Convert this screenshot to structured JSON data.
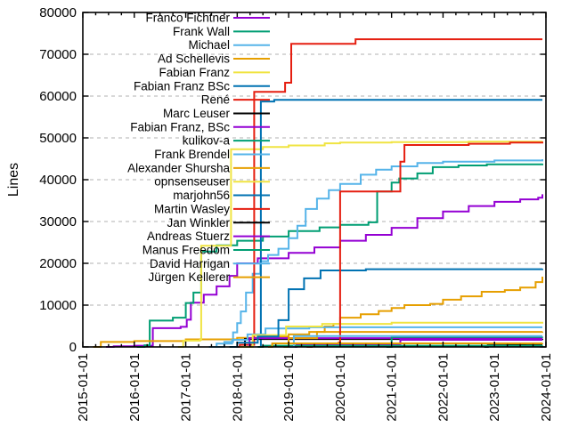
{
  "chart_data": {
    "type": "line",
    "title": "",
    "ylabel": "Lines",
    "x_axis": {
      "start_year": 2015,
      "end_year": 2024,
      "tick_labels": [
        "2015-01-01",
        "2016-01-01",
        "2017-01-01",
        "2018-01-01",
        "2019-01-01",
        "2020-01-01",
        "2021-01-01",
        "2022-01-01",
        "2023-01-01",
        "2024-01-01"
      ],
      "minor_ticks_per_year": 4,
      "label_rotation_deg": -90
    },
    "y_axis": {
      "min": 0,
      "max": 80000,
      "tick_step": 10000,
      "tick_labels": [
        "0",
        "10000",
        "20000",
        "30000",
        "40000",
        "50000",
        "60000",
        "70000",
        "80000"
      ]
    },
    "grid": {
      "horizontal_dashed": true,
      "color": "#b0b0b0"
    },
    "legend": {
      "position": "top-left-inside",
      "text_color": "#111111",
      "sample_line_length": 41
    },
    "axis_color": "#000000",
    "background_color": "#ffffff",
    "series": [
      {
        "name": "Franco Fichtner",
        "color": "#9400d3",
        "points": [
          [
            2015.45,
            0
          ],
          [
            2015.6,
            150
          ],
          [
            2016.0,
            300
          ],
          [
            2016.36,
            4500
          ],
          [
            2016.9,
            4800
          ],
          [
            2017.02,
            6500
          ],
          [
            2017.1,
            10600
          ],
          [
            2017.35,
            12500
          ],
          [
            2017.6,
            14500
          ],
          [
            2017.85,
            17000
          ],
          [
            2018.0,
            20000
          ],
          [
            2018.4,
            21200
          ],
          [
            2019.0,
            22500
          ],
          [
            2019.5,
            23800
          ],
          [
            2020.0,
            25400
          ],
          [
            2020.5,
            26800
          ],
          [
            2021.0,
            28500
          ],
          [
            2021.5,
            30800
          ],
          [
            2022.0,
            32400
          ],
          [
            2022.5,
            33700
          ],
          [
            2023.0,
            34700
          ],
          [
            2023.5,
            35300
          ],
          [
            2023.85,
            35700
          ],
          [
            2023.93,
            36500
          ]
        ]
      },
      {
        "name": "Frank Wall",
        "color": "#009e73",
        "points": [
          [
            2016.05,
            0
          ],
          [
            2016.2,
            400
          ],
          [
            2016.3,
            6300
          ],
          [
            2016.75,
            7000
          ],
          [
            2017.0,
            10500
          ],
          [
            2017.15,
            13000
          ],
          [
            2017.3,
            22800
          ],
          [
            2017.6,
            24300
          ],
          [
            2018.0,
            25400
          ],
          [
            2018.5,
            26400
          ],
          [
            2019.0,
            27700
          ],
          [
            2019.6,
            28600
          ],
          [
            2020.0,
            29200
          ],
          [
            2020.55,
            29800
          ],
          [
            2020.72,
            37200
          ],
          [
            2021.0,
            39300
          ],
          [
            2021.15,
            40300
          ],
          [
            2021.5,
            41500
          ],
          [
            2021.8,
            43000
          ],
          [
            2022.3,
            43400
          ],
          [
            2022.85,
            43650
          ],
          [
            2023.93,
            43850
          ]
        ]
      },
      {
        "name": "Michael",
        "color": "#56b4e9",
        "points": [
          [
            2017.55,
            0
          ],
          [
            2017.75,
            1200
          ],
          [
            2017.92,
            3500
          ],
          [
            2018.0,
            5700
          ],
          [
            2018.07,
            8500
          ],
          [
            2018.17,
            13000
          ],
          [
            2018.3,
            17500
          ],
          [
            2018.45,
            20500
          ],
          [
            2018.6,
            22000
          ],
          [
            2018.8,
            23500
          ],
          [
            2019.0,
            26000
          ],
          [
            2019.17,
            29000
          ],
          [
            2019.33,
            33000
          ],
          [
            2019.55,
            35500
          ],
          [
            2019.78,
            37500
          ],
          [
            2020.0,
            39000
          ],
          [
            2020.4,
            41200
          ],
          [
            2020.7,
            42400
          ],
          [
            2021.0,
            43200
          ],
          [
            2021.5,
            44000
          ],
          [
            2022.0,
            44300
          ],
          [
            2023.0,
            44600
          ],
          [
            2023.93,
            44900
          ]
        ]
      },
      {
        "name": "Ad Schellevis",
        "color": "#e69f00",
        "points": [
          [
            2015.2,
            0
          ],
          [
            2015.35,
            1200
          ],
          [
            2016.0,
            1400
          ],
          [
            2017.0,
            1800
          ],
          [
            2018.0,
            2200
          ],
          [
            2018.5,
            2500
          ],
          [
            2019.0,
            3000
          ],
          [
            2019.4,
            3600
          ],
          [
            2019.7,
            4900
          ],
          [
            2019.87,
            5500
          ],
          [
            2020.0,
            7000
          ],
          [
            2020.4,
            7800
          ],
          [
            2020.75,
            8600
          ],
          [
            2021.0,
            9300
          ],
          [
            2021.25,
            10000
          ],
          [
            2021.75,
            10300
          ],
          [
            2022.0,
            11300
          ],
          [
            2022.35,
            12100
          ],
          [
            2022.75,
            13200
          ],
          [
            2023.2,
            13600
          ],
          [
            2023.5,
            14200
          ],
          [
            2023.8,
            15500
          ],
          [
            2023.93,
            16800
          ]
        ]
      },
      {
        "name": "Fabian Franz",
        "color": "#f0e442",
        "points": [
          [
            2016.85,
            0
          ],
          [
            2016.95,
            1500
          ],
          [
            2017.28,
            1700
          ],
          [
            2017.3,
            24200
          ],
          [
            2017.86,
            24200
          ],
          [
            2017.88,
            47300
          ],
          [
            2018.5,
            47800
          ],
          [
            2019.0,
            48200
          ],
          [
            2019.7,
            48700
          ],
          [
            2020.0,
            48900
          ],
          [
            2021.0,
            49000
          ],
          [
            2022.5,
            49100
          ],
          [
            2023.93,
            49200
          ]
        ]
      },
      {
        "name": "Fabian Franz BSc",
        "color": "#0072b2",
        "points": [
          [
            2018.42,
            0
          ],
          [
            2018.46,
            58700
          ],
          [
            2018.72,
            59100
          ],
          [
            2023.93,
            59100
          ]
        ]
      },
      {
        "name": "René",
        "color": "#e51e10",
        "points": [
          [
            2017.95,
            0
          ],
          [
            2018.05,
            500
          ],
          [
            2018.33,
            61000
          ],
          [
            2018.9,
            61000
          ],
          [
            2018.93,
            63200
          ],
          [
            2019.05,
            72500
          ],
          [
            2020.3,
            73600
          ],
          [
            2023.93,
            73600
          ]
        ]
      },
      {
        "name": "Marc Leuser",
        "color": "#000000",
        "points": [
          [
            2018.1,
            0
          ],
          [
            2018.15,
            1900
          ],
          [
            2023.93,
            1950
          ]
        ]
      },
      {
        "name": "Fabian Franz, BSc",
        "color": "#9400d3",
        "points": [
          [
            2018.2,
            0
          ],
          [
            2018.24,
            2100
          ],
          [
            2023.93,
            2100
          ]
        ]
      },
      {
        "name": "kulikov-a",
        "color": "#009e73",
        "points": [
          [
            2020.9,
            0
          ],
          [
            2021.0,
            2400
          ],
          [
            2023.93,
            2450
          ]
        ]
      },
      {
        "name": "Frank Brendel",
        "color": "#56b4e9",
        "points": [
          [
            2017.45,
            0
          ],
          [
            2017.6,
            800
          ],
          [
            2017.9,
            1700
          ],
          [
            2018.2,
            3000
          ],
          [
            2018.55,
            4400
          ],
          [
            2019.4,
            4700
          ],
          [
            2023.93,
            4700
          ]
        ]
      },
      {
        "name": "Alexander Shursha",
        "color": "#e69f00",
        "points": [
          [
            2018.9,
            0
          ],
          [
            2019.0,
            2100
          ],
          [
            2019.55,
            3600
          ],
          [
            2023.93,
            3650
          ]
        ]
      },
      {
        "name": "opnsenseuser",
        "color": "#f0e442",
        "points": [
          [
            2018.05,
            0
          ],
          [
            2018.3,
            2800
          ],
          [
            2018.95,
            4900
          ],
          [
            2019.65,
            5500
          ],
          [
            2021.0,
            5800
          ],
          [
            2023.93,
            6000
          ]
        ]
      },
      {
        "name": "marjohn56",
        "color": "#0072b2",
        "points": [
          [
            2017.85,
            0
          ],
          [
            2018.0,
            1000
          ],
          [
            2018.4,
            2500
          ],
          [
            2018.8,
            6400
          ],
          [
            2019.0,
            13800
          ],
          [
            2019.3,
            16400
          ],
          [
            2019.62,
            18300
          ],
          [
            2020.5,
            18600
          ],
          [
            2023.93,
            18700
          ]
        ]
      },
      {
        "name": "Martin Wasley",
        "color": "#e51e10",
        "points": [
          [
            2019.35,
            0
          ],
          [
            2019.45,
            800
          ],
          [
            2019.97,
            1000
          ],
          [
            2020.0,
            37200
          ],
          [
            2021.1,
            37200
          ],
          [
            2021.17,
            44300
          ],
          [
            2021.25,
            48300
          ],
          [
            2022.5,
            48600
          ],
          [
            2023.3,
            48900
          ],
          [
            2023.93,
            49100
          ]
        ]
      },
      {
        "name": "Jan Winkler",
        "color": "#000000",
        "points": [
          [
            2022.8,
            0
          ],
          [
            2022.87,
            400
          ],
          [
            2023.25,
            640
          ],
          [
            2023.6,
            700
          ],
          [
            2023.93,
            700
          ]
        ]
      },
      {
        "name": "Andreas Stuerz",
        "color": "#9400d3",
        "points": [
          [
            2019.05,
            0
          ],
          [
            2019.15,
            600
          ],
          [
            2021.12,
            600
          ],
          [
            2021.17,
            1700
          ],
          [
            2023.93,
            1700
          ]
        ]
      },
      {
        "name": "Manus Freedom",
        "color": "#009e73",
        "points": [
          [
            2018.4,
            0
          ],
          [
            2018.5,
            300
          ],
          [
            2023.93,
            350
          ]
        ]
      },
      {
        "name": "David Harrigan",
        "color": "#56b4e9",
        "points": [
          [
            2019.0,
            0
          ],
          [
            2019.1,
            2600
          ],
          [
            2023.93,
            2600
          ]
        ]
      },
      {
        "name": "Jürgen Kellerer",
        "color": "#e69f00",
        "points": [
          [
            2018.6,
            0
          ],
          [
            2018.68,
            850
          ],
          [
            2023.93,
            900
          ]
        ]
      }
    ]
  }
}
